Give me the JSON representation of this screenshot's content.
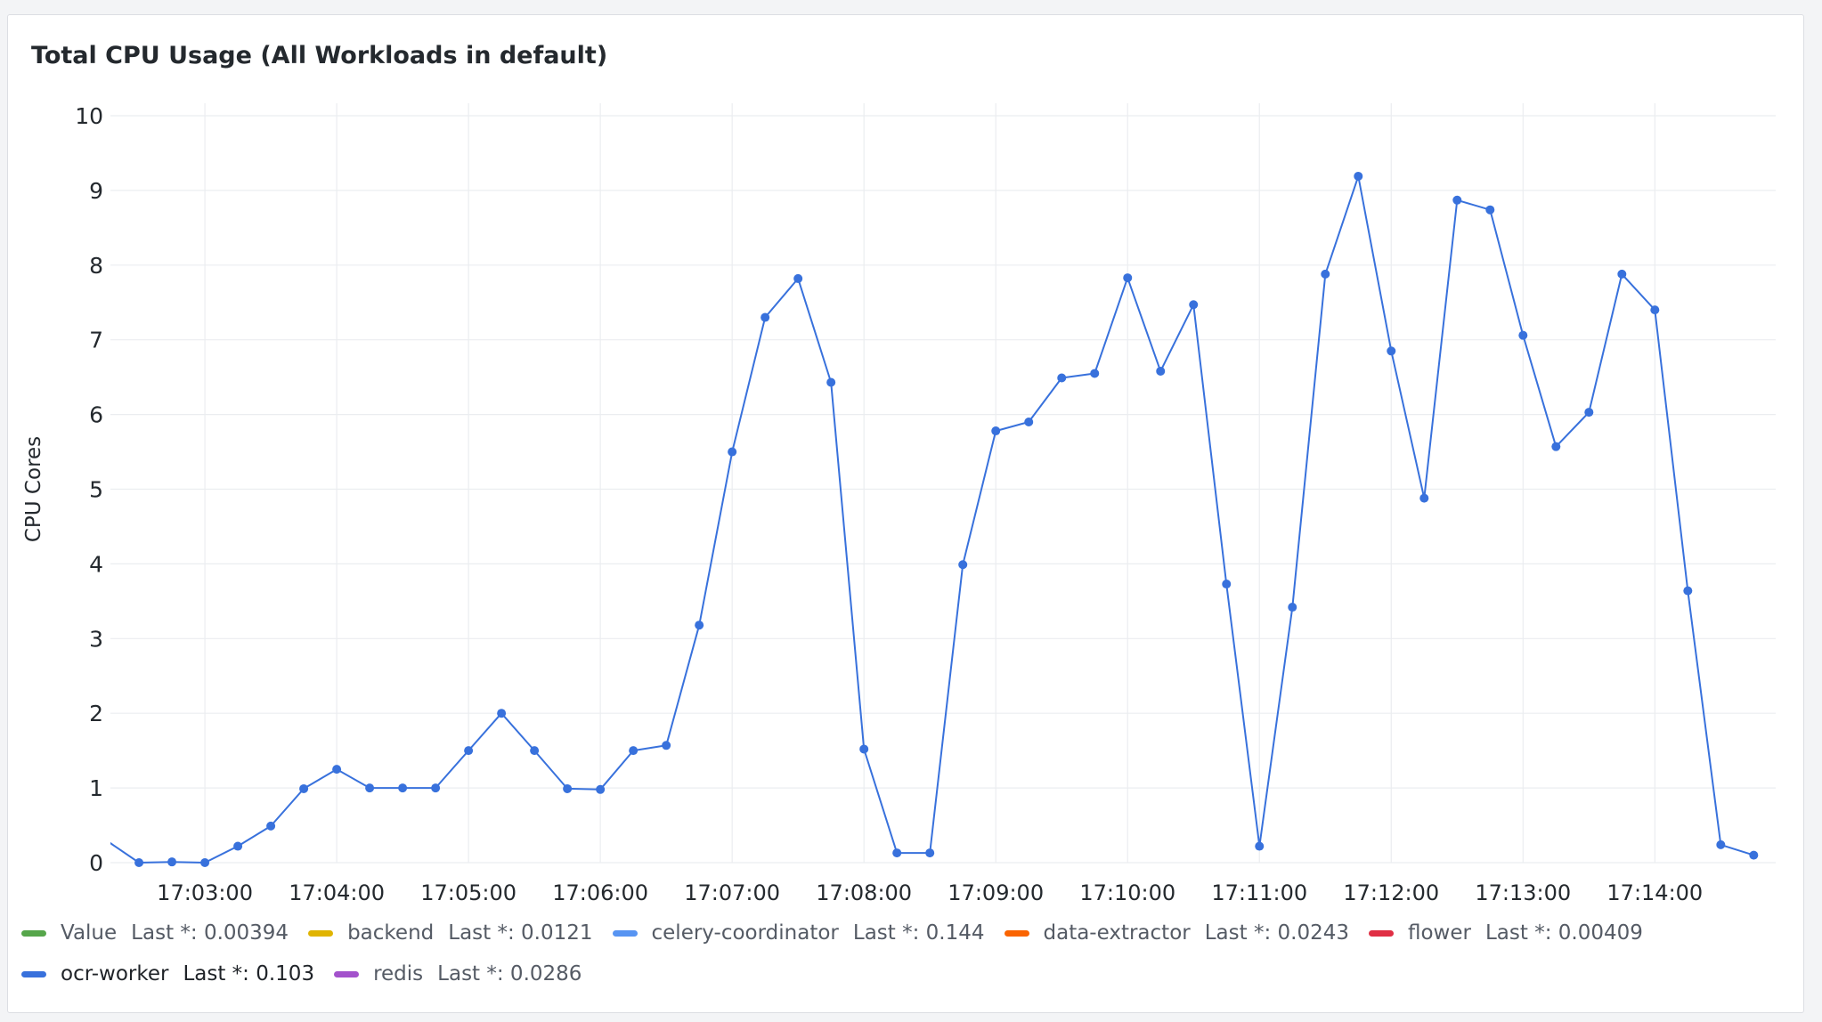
{
  "panel": {
    "title": "Total CPU Usage (All Workloads in default)"
  },
  "chart_data": {
    "type": "line",
    "title": "Total CPU Usage (All Workloads in default)",
    "ylabel": "CPU Cores",
    "xlabel": "",
    "ylim": [
      0,
      10
    ],
    "yticks": [
      "0",
      "1",
      "2",
      "3",
      "4",
      "5",
      "6",
      "7",
      "8",
      "9",
      "10"
    ],
    "xlim": [
      "17:02:17",
      "17:14:55"
    ],
    "xticks": [
      "17:03:00",
      "17:04:00",
      "17:05:00",
      "17:06:00",
      "17:07:00",
      "17:08:00",
      "17:09:00",
      "17:10:00",
      "17:11:00",
      "17:12:00",
      "17:13:00",
      "17:14:00"
    ],
    "grid": true,
    "x": [
      "17:02:15",
      "17:02:30",
      "17:02:45",
      "17:03:00",
      "17:03:15",
      "17:03:30",
      "17:03:45",
      "17:04:00",
      "17:04:15",
      "17:04:30",
      "17:04:45",
      "17:05:00",
      "17:05:15",
      "17:05:30",
      "17:05:45",
      "17:06:00",
      "17:06:15",
      "17:06:30",
      "17:06:45",
      "17:07:00",
      "17:07:15",
      "17:07:30",
      "17:07:45",
      "17:08:00",
      "17:08:15",
      "17:08:30",
      "17:08:45",
      "17:09:00",
      "17:09:15",
      "17:09:30",
      "17:09:45",
      "17:10:00",
      "17:10:15",
      "17:10:30",
      "17:10:45",
      "17:11:00",
      "17:11:15",
      "17:11:30",
      "17:11:45",
      "17:12:00",
      "17:12:15",
      "17:12:30",
      "17:12:45",
      "17:13:00",
      "17:13:15",
      "17:13:30",
      "17:13:45",
      "17:14:00",
      "17:14:15",
      "17:14:30",
      "17:14:45"
    ],
    "series": [
      {
        "name": "ocr-worker",
        "color": "#3871dc",
        "values": [
          0.3,
          0.0,
          0.01,
          0.0,
          0.22,
          0.49,
          0.99,
          1.25,
          1.0,
          1.0,
          1.0,
          1.5,
          2.0,
          1.5,
          0.99,
          0.98,
          1.5,
          1.57,
          3.18,
          5.5,
          7.3,
          7.82,
          6.43,
          1.52,
          0.13,
          0.13,
          3.99,
          5.78,
          5.9,
          6.49,
          6.55,
          7.83,
          6.58,
          7.47,
          3.73,
          0.22,
          3.42,
          7.88,
          9.19,
          6.85,
          4.88,
          8.87,
          8.74,
          7.06,
          5.57,
          6.03,
          7.88,
          7.4,
          3.64,
          0.24,
          0.1
        ]
      }
    ]
  },
  "legend": [
    {
      "name": "Value",
      "stat": "Last *: 0.00394",
      "color": "#56a64b"
    },
    {
      "name": "backend",
      "stat": "Last *: 0.0121",
      "color": "#e0b400"
    },
    {
      "name": "celery-coordinator",
      "stat": "Last *: 0.144",
      "color": "#5794f2"
    },
    {
      "name": "data-extractor",
      "stat": "Last *: 0.0243",
      "color": "#fa6400"
    },
    {
      "name": "flower",
      "stat": "Last *: 0.00409",
      "color": "#e02f44"
    },
    {
      "name": "ocr-worker",
      "stat": "Last *: 0.103",
      "color": "#3871dc"
    },
    {
      "name": "redis",
      "stat": "Last *: 0.0286",
      "color": "#a352cc"
    }
  ]
}
